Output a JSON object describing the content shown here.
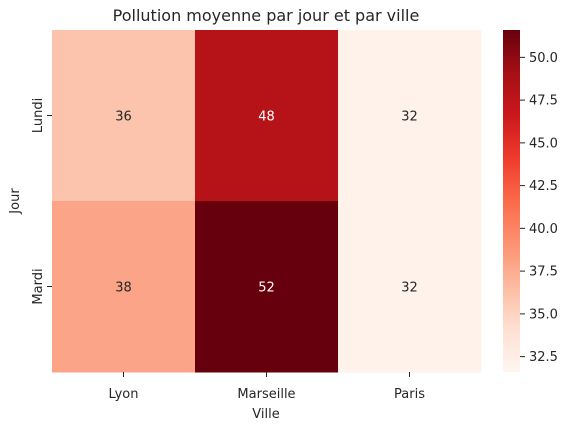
{
  "chart_data": {
    "type": "heatmap",
    "title": "Pollution moyenne par jour et par ville",
    "xlabel": "Ville",
    "ylabel": "Jour",
    "x_categories": [
      "Lyon",
      "Marseille",
      "Paris"
    ],
    "y_categories": [
      "Lundi",
      "Mardi"
    ],
    "values": [
      [
        36,
        48,
        32
      ],
      [
        38,
        52,
        32
      ]
    ],
    "annotations": [
      [
        "36",
        "48",
        "32"
      ],
      [
        "38",
        "52",
        "32"
      ]
    ],
    "colormap": "Reds",
    "colorbar": {
      "range": [
        31.6,
        51.6
      ],
      "ticks": [
        32.5,
        35.0,
        37.5,
        40.0,
        42.5,
        45.0,
        47.5,
        50.0
      ],
      "tick_labels": [
        "32.5",
        "35.0",
        "37.5",
        "40.0",
        "42.5",
        "45.0",
        "47.5",
        "50.0"
      ]
    },
    "grid": false
  }
}
